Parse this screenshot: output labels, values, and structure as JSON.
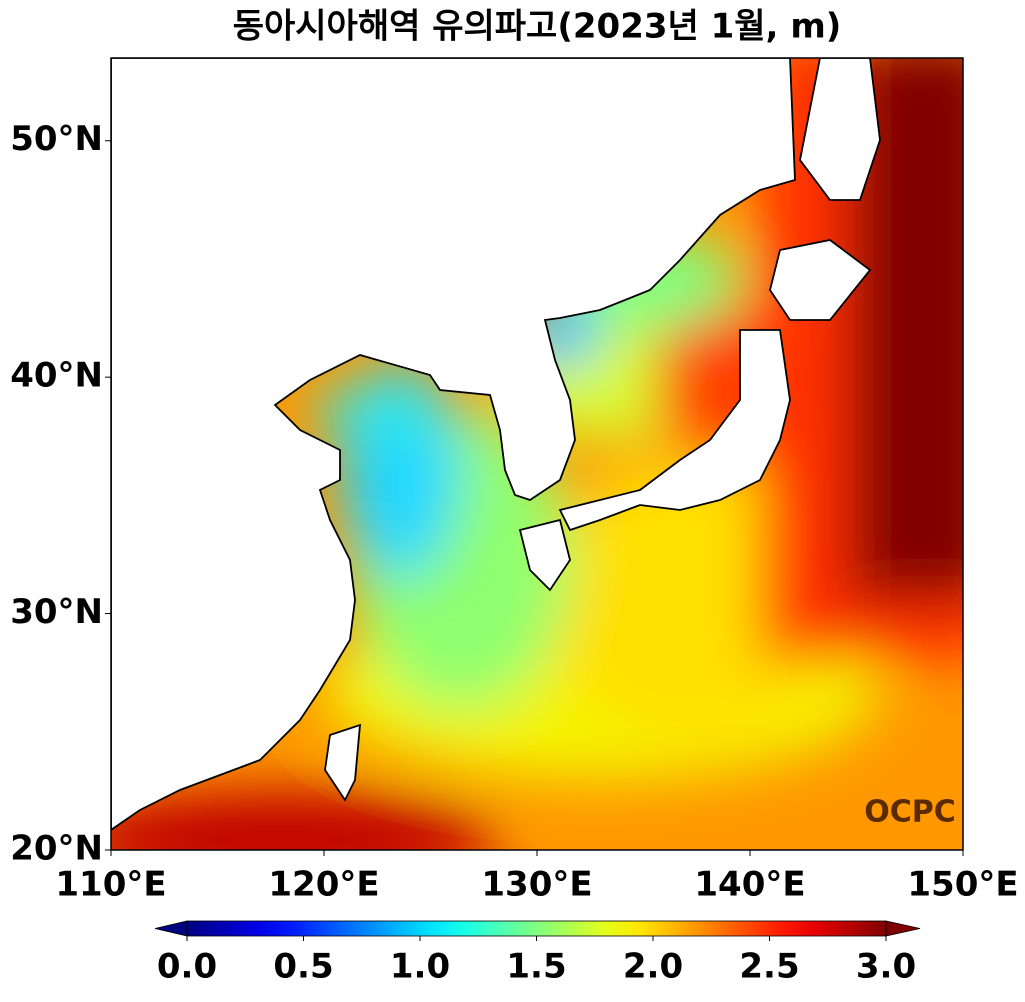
{
  "title": "동아시아해역 유의파고(2023년 1월, m)",
  "map": {
    "xlim": [
      110,
      150
    ],
    "ylim": [
      20,
      53.5
    ],
    "xticks": [
      {
        "value": 110,
        "label": "110°E"
      },
      {
        "value": 120,
        "label": "120°E"
      },
      {
        "value": 130,
        "label": "130°E"
      },
      {
        "value": 140,
        "label": "140°E"
      },
      {
        "value": 150,
        "label": "150°E"
      }
    ],
    "yticks": [
      {
        "value": 20,
        "label": "20°N"
      },
      {
        "value": 30,
        "label": "30°N"
      },
      {
        "value": 40,
        "label": "40°N"
      },
      {
        "value": 50,
        "label": "50°N"
      }
    ]
  },
  "colorbar": {
    "colormap": "jet",
    "lim": [
      0,
      3
    ],
    "ticks": [
      {
        "value": 0,
        "label": "0.0"
      },
      {
        "value": 0.5,
        "label": "0.5"
      },
      {
        "value": 1,
        "label": "1.0"
      },
      {
        "value": 1.5,
        "label": "1.5"
      },
      {
        "value": 2,
        "label": "2.0"
      },
      {
        "value": 2.5,
        "label": "2.5"
      },
      {
        "value": 3,
        "label": "3.0"
      }
    ]
  },
  "logo": "OCPC"
}
